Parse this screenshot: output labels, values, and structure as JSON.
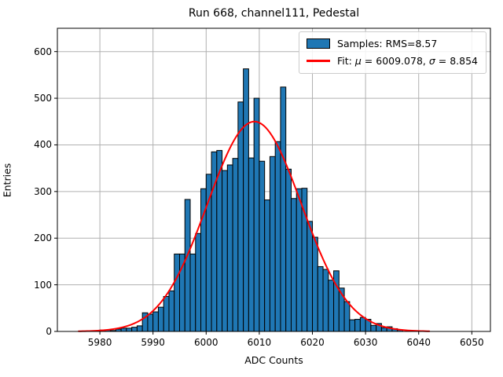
{
  "window": {
    "title": "Run 668, channel111, Pedestal"
  },
  "chart_data": {
    "type": "bar",
    "subtype": "histogram-with-gaussian-fit",
    "title": "Run 668, channel111, Pedestal",
    "xlabel": "ADC Counts",
    "ylabel": "Entries",
    "xlim": [
      5972.0,
      6053.5
    ],
    "ylim": [
      0,
      650
    ],
    "xticks": [
      5980,
      5990,
      6000,
      6010,
      6020,
      6030,
      6040,
      6050
    ],
    "yticks": [
      0,
      100,
      200,
      300,
      400,
      500,
      600
    ],
    "grid": true,
    "grid_color": "#b0b0b0",
    "bar_color": "#1f77b4",
    "bar_edge_color": "#000000",
    "histogram": {
      "bin_width": 1,
      "bin_left_edges": [
        5980,
        5981,
        5982,
        5983,
        5984,
        5985,
        5986,
        5987,
        5988,
        5989,
        5990,
        5991,
        5992,
        5993,
        5994,
        5995,
        5996,
        5997,
        5998,
        5999,
        6000,
        6001,
        6002,
        6003,
        6004,
        6005,
        6006,
        6007,
        6008,
        6009,
        6010,
        6011,
        6012,
        6013,
        6014,
        6015,
        6016,
        6017,
        6018,
        6019,
        6020,
        6021,
        6022,
        6023,
        6024,
        6025,
        6026,
        6027,
        6028,
        6029,
        6030,
        6031,
        6032,
        6033,
        6034,
        6035,
        6036
      ],
      "counts": [
        3,
        3,
        2,
        5,
        7,
        7,
        9,
        12,
        40,
        37,
        42,
        52,
        75,
        87,
        166,
        166,
        283,
        166,
        210,
        306,
        337,
        385,
        388,
        345,
        357,
        371,
        492,
        563,
        372,
        500,
        365,
        282,
        375,
        407,
        524,
        348,
        285,
        306,
        307,
        236,
        202,
        139,
        133,
        110,
        130,
        93,
        64,
        25,
        26,
        30,
        26,
        13,
        17,
        8,
        10,
        6,
        3
      ],
      "rms": 8.57
    },
    "fit_curve": {
      "shape": "gaussian",
      "mu": 6009.078,
      "sigma": 8.854,
      "amplitude": 450,
      "x_range": [
        5976,
        6042
      ],
      "color": "#ff0000"
    },
    "legend": {
      "position": "upper right",
      "entries": [
        {
          "label": "Samples: RMS=8.57",
          "swatch": "bar"
        },
        {
          "label": "Fit: μ = 6009.078, σ = 8.854",
          "swatch": "line"
        }
      ]
    }
  }
}
